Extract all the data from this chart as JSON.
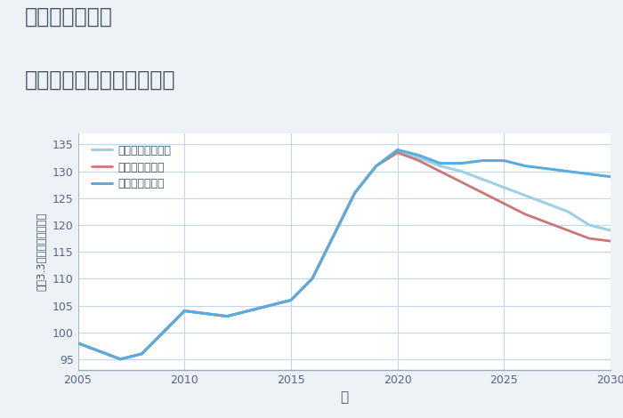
{
  "title_line1": "兵庫県手柄駅の",
  "title_line2": "中古マンションの価格推移",
  "xlabel": "年",
  "ylabel": "坪（3.3㎡）単価（万円）",
  "background_color": "#eef2f7",
  "plot_bg_color": "#ffffff",
  "xlim": [
    2005,
    2030
  ],
  "ylim": [
    93,
    137
  ],
  "yticks": [
    95,
    100,
    105,
    110,
    115,
    120,
    125,
    130,
    135
  ],
  "xticks": [
    2005,
    2010,
    2015,
    2020,
    2025,
    2030
  ],
  "good_color": "#5aacdc",
  "bad_color": "#cc7777",
  "normal_color": "#9dd0e0",
  "good_label": "グッドシナリオ",
  "bad_label": "バッドシナリオ",
  "normal_label": "ノーマルシナリオ",
  "title_color": "#445566",
  "tick_color": "#556688",
  "label_color": "#445566",
  "good_x": [
    2005,
    2006,
    2007,
    2008,
    2009,
    2010,
    2011,
    2012,
    2013,
    2014,
    2015,
    2016,
    2017,
    2018,
    2019,
    2020,
    2021,
    2022,
    2023,
    2024,
    2025,
    2026,
    2027,
    2028,
    2029,
    2030
  ],
  "good_y": [
    98,
    96.5,
    95,
    96,
    100,
    104,
    103.5,
    103,
    104,
    105,
    106,
    110,
    118,
    126,
    131,
    134,
    133,
    131.5,
    131.5,
    132,
    132,
    131,
    130.5,
    130,
    129.5,
    129
  ],
  "bad_x": [
    2005,
    2006,
    2007,
    2008,
    2009,
    2010,
    2011,
    2012,
    2013,
    2014,
    2015,
    2016,
    2017,
    2018,
    2019,
    2020,
    2021,
    2022,
    2023,
    2024,
    2025,
    2026,
    2027,
    2028,
    2029,
    2030
  ],
  "bad_y": [
    98,
    96.5,
    95,
    96,
    100,
    104,
    103.5,
    103,
    104,
    105,
    106,
    110,
    118,
    126,
    131,
    133.5,
    132,
    130,
    128,
    126,
    124,
    122,
    120.5,
    119,
    117.5,
    117
  ],
  "normal_x": [
    2005,
    2006,
    2007,
    2008,
    2009,
    2010,
    2011,
    2012,
    2013,
    2014,
    2015,
    2016,
    2017,
    2018,
    2019,
    2020,
    2021,
    2022,
    2023,
    2024,
    2025,
    2026,
    2027,
    2028,
    2029,
    2030
  ],
  "normal_y": [
    98,
    96.5,
    95,
    96,
    100,
    104,
    103.5,
    103,
    104,
    105,
    106,
    110,
    118,
    126,
    131,
    133.5,
    132.5,
    131,
    130,
    128.5,
    127,
    125.5,
    124,
    122.5,
    120,
    119
  ]
}
